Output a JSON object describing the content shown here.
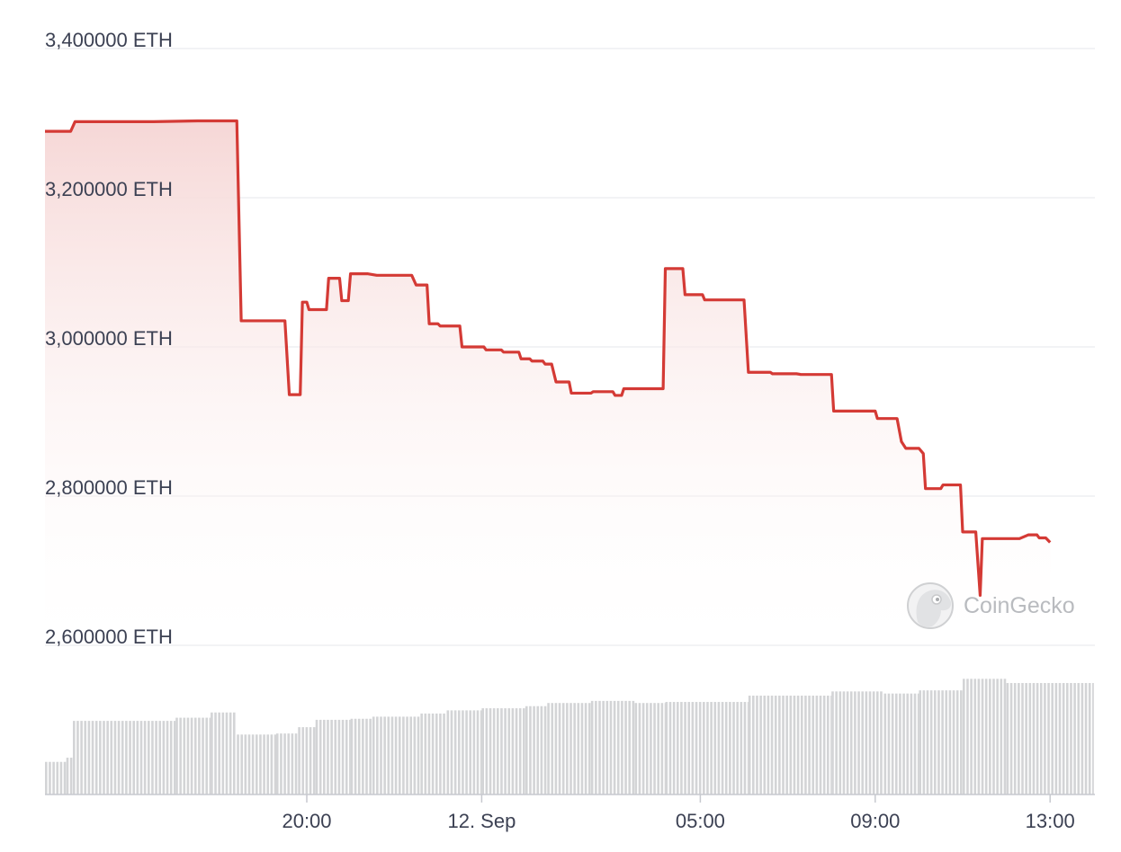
{
  "chart_data": {
    "type": "line",
    "y_unit": "ETH",
    "ylim": [
      2600000,
      3400000
    ],
    "y_ticks": [
      {
        "value": 3400000,
        "label": "3,400000 ETH"
      },
      {
        "value": 3200000,
        "label": "3,200000 ETH"
      },
      {
        "value": 3000000,
        "label": "3,000000 ETH"
      },
      {
        "value": 2800000,
        "label": "2,800000 ETH"
      },
      {
        "value": 2600000,
        "label": "2,600000 ETH"
      }
    ],
    "x_ticks": [
      {
        "hour": 20,
        "label": "20:00"
      },
      {
        "hour": 24,
        "label": "12. Sep"
      },
      {
        "hour": 29,
        "label": "05:00"
      },
      {
        "hour": 33,
        "label": "09:00"
      },
      {
        "hour": 37,
        "label": "13:00"
      }
    ],
    "xlim_hours": [
      14.0,
      38.0
    ],
    "grid": true,
    "line_color": "#d43a35",
    "area_top_color": "#f6d7d6",
    "volume_color": "#d3d4d6",
    "series": [
      {
        "points": [
          [
            14.0,
            3289000
          ],
          [
            14.6,
            3289000
          ],
          [
            14.7,
            3302000
          ],
          [
            16.5,
            3302000
          ],
          [
            17.5,
            3303000
          ],
          [
            18.4,
            3303000
          ],
          [
            18.5,
            3035000
          ],
          [
            19.5,
            3035000
          ],
          [
            19.6,
            2936000
          ],
          [
            19.85,
            2936000
          ],
          [
            19.9,
            3060000
          ],
          [
            20.0,
            3060000
          ],
          [
            20.05,
            3050000
          ],
          [
            20.45,
            3050000
          ],
          [
            20.5,
            3092000
          ],
          [
            20.75,
            3092000
          ],
          [
            20.8,
            3062000
          ],
          [
            20.95,
            3062000
          ],
          [
            21.0,
            3098000
          ],
          [
            21.4,
            3098000
          ],
          [
            21.6,
            3096000
          ],
          [
            22.4,
            3096000
          ],
          [
            22.5,
            3083000
          ],
          [
            22.75,
            3083000
          ],
          [
            22.8,
            3031000
          ],
          [
            23.0,
            3031000
          ],
          [
            23.05,
            3028000
          ],
          [
            23.5,
            3028000
          ],
          [
            23.55,
            3000000
          ],
          [
            24.05,
            3000000
          ],
          [
            24.1,
            2996000
          ],
          [
            24.45,
            2996000
          ],
          [
            24.5,
            2993000
          ],
          [
            24.85,
            2993000
          ],
          [
            24.9,
            2984000
          ],
          [
            25.1,
            2984000
          ],
          [
            25.15,
            2981000
          ],
          [
            25.4,
            2981000
          ],
          [
            25.45,
            2977000
          ],
          [
            25.6,
            2977000
          ],
          [
            25.7,
            2953000
          ],
          [
            26.0,
            2953000
          ],
          [
            26.05,
            2938000
          ],
          [
            26.5,
            2938000
          ],
          [
            26.55,
            2940000
          ],
          [
            27.0,
            2940000
          ],
          [
            27.05,
            2935000
          ],
          [
            27.2,
            2935000
          ],
          [
            27.25,
            2944000
          ],
          [
            28.15,
            2944000
          ],
          [
            28.2,
            3105000
          ],
          [
            28.6,
            3105000
          ],
          [
            28.65,
            3070000
          ],
          [
            29.05,
            3070000
          ],
          [
            29.1,
            3063000
          ],
          [
            30.0,
            3063000
          ],
          [
            30.1,
            2966000
          ],
          [
            30.6,
            2966000
          ],
          [
            30.65,
            2964000
          ],
          [
            31.2,
            2964000
          ],
          [
            31.3,
            2963000
          ],
          [
            32.0,
            2963000
          ],
          [
            32.05,
            2914000
          ],
          [
            33.0,
            2914000
          ],
          [
            33.05,
            2904000
          ],
          [
            33.5,
            2904000
          ],
          [
            33.6,
            2873000
          ],
          [
            33.7,
            2864000
          ],
          [
            34.0,
            2864000
          ],
          [
            34.1,
            2857000
          ],
          [
            34.15,
            2810000
          ],
          [
            34.5,
            2810000
          ],
          [
            34.55,
            2815000
          ],
          [
            34.95,
            2815000
          ],
          [
            35.0,
            2752000
          ],
          [
            35.3,
            2752000
          ],
          [
            35.4,
            2667000
          ],
          [
            35.45,
            2743000
          ],
          [
            36.3,
            2743000
          ],
          [
            36.5,
            2748000
          ],
          [
            36.7,
            2748000
          ],
          [
            36.75,
            2744000
          ],
          [
            36.9,
            2744000
          ],
          [
            37.0,
            2738000
          ]
        ]
      }
    ],
    "volume_bars": [
      {
        "from": 14.0,
        "to": 14.5,
        "level": 0.31
      },
      {
        "from": 14.5,
        "to": 14.65,
        "level": 0.35
      },
      {
        "from": 14.65,
        "to": 17.0,
        "level": 0.7
      },
      {
        "from": 17.0,
        "to": 17.8,
        "level": 0.73
      },
      {
        "from": 17.8,
        "to": 18.4,
        "level": 0.78
      },
      {
        "from": 18.4,
        "to": 19.3,
        "level": 0.57
      },
      {
        "from": 19.3,
        "to": 19.8,
        "level": 0.58
      },
      {
        "from": 19.8,
        "to": 20.2,
        "level": 0.64
      },
      {
        "from": 20.2,
        "to": 21.0,
        "level": 0.71
      },
      {
        "from": 21.0,
        "to": 21.5,
        "level": 0.72
      },
      {
        "from": 21.5,
        "to": 22.6,
        "level": 0.74
      },
      {
        "from": 22.6,
        "to": 23.2,
        "level": 0.77
      },
      {
        "from": 23.2,
        "to": 24.0,
        "level": 0.8
      },
      {
        "from": 24.0,
        "to": 25.0,
        "level": 0.82
      },
      {
        "from": 25.0,
        "to": 25.5,
        "level": 0.84
      },
      {
        "from": 25.5,
        "to": 26.5,
        "level": 0.87
      },
      {
        "from": 26.5,
        "to": 27.5,
        "level": 0.89
      },
      {
        "from": 27.5,
        "to": 28.2,
        "level": 0.87
      },
      {
        "from": 28.2,
        "to": 30.1,
        "level": 0.88
      },
      {
        "from": 30.1,
        "to": 32.0,
        "level": 0.94
      },
      {
        "from": 32.0,
        "to": 33.2,
        "level": 0.98
      },
      {
        "from": 33.2,
        "to": 34.0,
        "level": 0.96
      },
      {
        "from": 34.0,
        "to": 35.0,
        "level": 0.99
      },
      {
        "from": 35.0,
        "to": 36.0,
        "level": 1.1
      },
      {
        "from": 36.0,
        "to": 38.0,
        "level": 1.06
      }
    ]
  },
  "watermark": {
    "text": "CoinGecko",
    "icon": "coingecko-gecko-icon"
  }
}
